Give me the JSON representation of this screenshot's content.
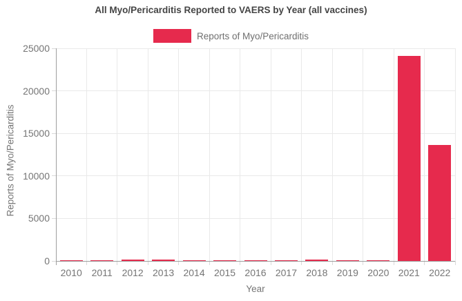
{
  "chart_data": {
    "type": "bar",
    "title": "All Myo/Pericarditis Reported to VAERS by Year (all vaccines)",
    "legend": [
      {
        "label": "Reports of Myo/Pericarditis",
        "color": "#e62a4d"
      }
    ],
    "categories": [
      "2010",
      "2011",
      "2012",
      "2013",
      "2014",
      "2015",
      "2016",
      "2017",
      "2018",
      "2019",
      "2020",
      "2021",
      "2022"
    ],
    "series": [
      {
        "name": "Reports of Myo/Pericarditis",
        "values": [
          80,
          100,
          170,
          140,
          80,
          55,
          75,
          80,
          170,
          80,
          65,
          24100,
          13650
        ]
      }
    ],
    "xlabel": "Year",
    "ylabel": "Reports of Myo/Pericarditis",
    "ylim": [
      0,
      25000
    ],
    "yticks": [
      0,
      5000,
      10000,
      15000,
      20000,
      25000
    ],
    "grid": true,
    "legend_position": "top",
    "colors": {
      "bar": "#e62a4d",
      "grid": "#e9e9e9",
      "tick": "#d9d9d9",
      "axis": "#9e9e9e",
      "tick_text": "#757575",
      "title_text": "#444444"
    }
  }
}
